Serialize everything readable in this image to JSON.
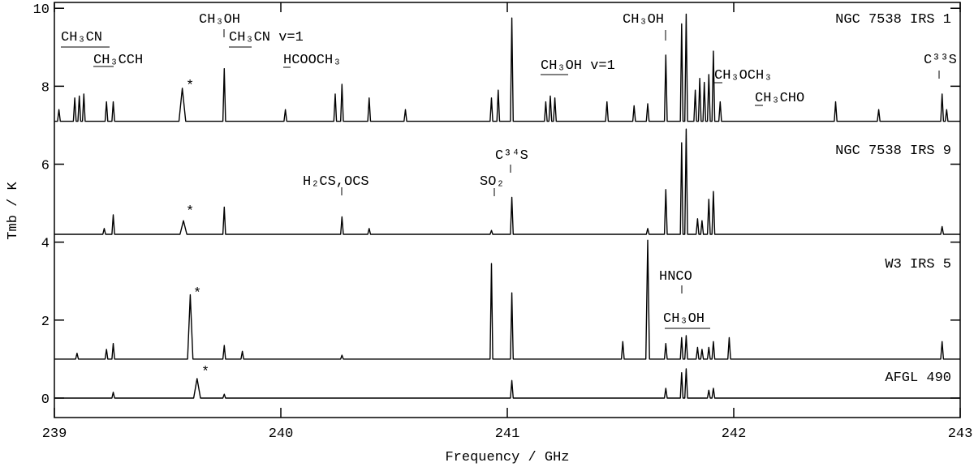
{
  "chart_data": {
    "type": "line",
    "xlabel": "Frequency / GHz",
    "ylabel": "Tmb / K",
    "xlim": [
      239,
      243
    ],
    "xticks": [
      239,
      240,
      241,
      242,
      243
    ],
    "ylim": [
      -0.5,
      10.15
    ],
    "yticks": [
      0,
      2,
      4,
      6,
      8,
      10
    ],
    "series": [
      {
        "name": "NGC 7538 IRS 1",
        "color": "#000000",
        "x": [
          239.0,
          239.014,
          239.02,
          239.026,
          239.084,
          239.09,
          239.096,
          239.104,
          239.11,
          239.116,
          239.124,
          239.13,
          239.136,
          239.224,
          239.23,
          239.236,
          239.254,
          239.26,
          239.266,
          239.55,
          239.565,
          239.58,
          239.744,
          239.75,
          239.756,
          240.014,
          240.02,
          240.026,
          240.234,
          240.24,
          240.246,
          240.264,
          240.27,
          240.276,
          240.384,
          240.39,
          240.396,
          240.544,
          240.55,
          240.556,
          240.924,
          240.93,
          240.936,
          240.954,
          240.96,
          240.966,
          241.014,
          241.02,
          241.026,
          241.164,
          241.17,
          241.176,
          241.184,
          241.19,
          241.196,
          241.204,
          241.21,
          241.216,
          241.434,
          241.44,
          241.446,
          241.554,
          241.56,
          241.566,
          241.614,
          241.62,
          241.626,
          241.694,
          241.7,
          241.706,
          241.764,
          241.77,
          241.776,
          241.784,
          241.79,
          241.796,
          241.824,
          241.83,
          241.836,
          241.844,
          241.85,
          241.856,
          241.864,
          241.87,
          241.876,
          241.884,
          241.89,
          241.896,
          241.904,
          241.91,
          241.916,
          241.934,
          241.94,
          241.946,
          242.444,
          242.45,
          242.456,
          242.634,
          242.64,
          242.646,
          242.914,
          242.92,
          242.926,
          242.934,
          242.94,
          242.946,
          243.0
        ],
        "values": [
          7.1,
          7.1,
          7.4,
          7.1,
          7.1,
          7.7,
          7.1,
          7.1,
          7.75,
          7.1,
          7.1,
          7.8,
          7.1,
          7.1,
          7.6,
          7.1,
          7.1,
          7.6,
          7.1,
          7.1,
          7.95,
          7.1,
          7.1,
          8.45,
          7.1,
          7.1,
          7.4,
          7.1,
          7.1,
          7.8,
          7.1,
          7.1,
          8.05,
          7.1,
          7.1,
          7.7,
          7.1,
          7.1,
          7.4,
          7.1,
          7.1,
          7.7,
          7.1,
          7.1,
          7.9,
          7.1,
          7.1,
          9.75,
          7.1,
          7.1,
          7.6,
          7.1,
          7.1,
          7.75,
          7.1,
          7.1,
          7.7,
          7.1,
          7.1,
          7.6,
          7.1,
          7.1,
          7.5,
          7.1,
          7.1,
          7.55,
          7.1,
          7.1,
          8.8,
          7.1,
          7.1,
          9.6,
          7.1,
          7.1,
          9.85,
          7.1,
          7.1,
          7.9,
          7.1,
          7.1,
          8.2,
          7.1,
          7.1,
          8.1,
          7.1,
          7.1,
          8.3,
          7.1,
          7.1,
          8.9,
          7.1,
          7.1,
          7.6,
          7.1,
          7.1,
          7.6,
          7.1,
          7.1,
          7.4,
          7.1,
          7.1,
          7.8,
          7.1,
          7.1,
          7.4,
          7.1,
          7.1
        ]
      },
      {
        "name": "NGC 7538 IRS 9",
        "color": "#000000",
        "x": [
          239.0,
          239.214,
          239.22,
          239.226,
          239.254,
          239.26,
          239.266,
          239.555,
          239.57,
          239.585,
          239.744,
          239.75,
          239.756,
          240.264,
          240.27,
          240.276,
          240.384,
          240.39,
          240.396,
          240.924,
          240.93,
          240.936,
          241.014,
          241.02,
          241.026,
          241.614,
          241.62,
          241.626,
          241.694,
          241.7,
          241.706,
          241.764,
          241.77,
          241.776,
          241.784,
          241.79,
          241.796,
          241.834,
          241.84,
          241.846,
          241.854,
          241.86,
          241.866,
          241.884,
          241.89,
          241.896,
          241.904,
          241.91,
          241.916,
          242.914,
          242.92,
          242.926,
          243.0
        ],
        "values": [
          4.2,
          4.2,
          4.35,
          4.2,
          4.2,
          4.7,
          4.2,
          4.2,
          4.55,
          4.2,
          4.2,
          4.9,
          4.2,
          4.2,
          4.65,
          4.2,
          4.2,
          4.35,
          4.2,
          4.2,
          4.3,
          4.2,
          4.2,
          5.15,
          4.2,
          4.2,
          4.35,
          4.2,
          4.2,
          5.35,
          4.2,
          4.2,
          6.55,
          4.2,
          4.2,
          6.9,
          4.2,
          4.2,
          4.6,
          4.2,
          4.2,
          4.55,
          4.2,
          4.2,
          5.1,
          4.2,
          4.2,
          5.3,
          4.2,
          4.2,
          4.4,
          4.2,
          4.2
        ]
      },
      {
        "name": "W3 IRS 5",
        "color": "#000000",
        "x": [
          239.0,
          239.094,
          239.1,
          239.106,
          239.224,
          239.23,
          239.236,
          239.254,
          239.26,
          239.266,
          239.588,
          239.6,
          239.612,
          239.744,
          239.75,
          239.756,
          239.824,
          239.83,
          239.836,
          240.264,
          240.27,
          240.276,
          240.924,
          240.93,
          240.936,
          241.014,
          241.02,
          241.026,
          241.504,
          241.51,
          241.516,
          241.612,
          241.62,
          241.628,
          241.694,
          241.7,
          241.706,
          241.764,
          241.77,
          241.776,
          241.784,
          241.79,
          241.796,
          241.834,
          241.84,
          241.846,
          241.854,
          241.86,
          241.866,
          241.884,
          241.89,
          241.896,
          241.904,
          241.91,
          241.916,
          241.974,
          241.98,
          241.986,
          242.914,
          242.92,
          242.926,
          243.0
        ],
        "values": [
          1,
          1,
          1.15,
          1,
          1,
          1.25,
          1,
          1,
          1.4,
          1,
          1,
          2.65,
          1,
          1,
          1.35,
          1,
          1,
          1.2,
          1,
          1,
          1.1,
          1,
          1,
          3.45,
          1,
          1,
          2.7,
          1,
          1,
          1.45,
          1,
          1,
          4.05,
          1,
          1,
          1.4,
          1,
          1,
          1.55,
          1,
          1,
          1.6,
          1,
          1,
          1.3,
          1,
          1,
          1.25,
          1,
          1,
          1.3,
          1,
          1,
          1.45,
          1,
          1,
          1.55,
          1,
          1,
          1.45,
          1,
          1
        ]
      },
      {
        "name": "AFGL 490",
        "color": "#000000",
        "x": [
          239.0,
          239.254,
          239.26,
          239.266,
          239.615,
          239.63,
          239.645,
          239.744,
          239.75,
          239.756,
          241.014,
          241.02,
          241.026,
          241.694,
          241.7,
          241.706,
          241.764,
          241.77,
          241.776,
          241.784,
          241.79,
          241.796,
          241.884,
          241.89,
          241.896,
          241.904,
          241.91,
          241.916,
          243.0
        ],
        "values": [
          0,
          0,
          0.15,
          0,
          0,
          0.5,
          0,
          0,
          0.1,
          0,
          0,
          0.45,
          0,
          0,
          0.25,
          0,
          0,
          0.65,
          0,
          0,
          0.75,
          0,
          0,
          0.2,
          0,
          0,
          0.25,
          0,
          0
        ]
      }
    ],
    "annotations": [
      "CH₃CN",
      "CH₃CCH",
      "CH₃OH",
      "CH₃CN v=1",
      "HCOOCH₃",
      "CH₃OH v=1",
      "CH₃OH",
      "CH₃OCH₃",
      "CH₃CHO",
      "C³³S",
      "*",
      "H₂CS,OCS",
      "SO₂",
      "C³⁴S",
      "*",
      "HNCO",
      "CH₃OH",
      "*",
      "*"
    ]
  }
}
